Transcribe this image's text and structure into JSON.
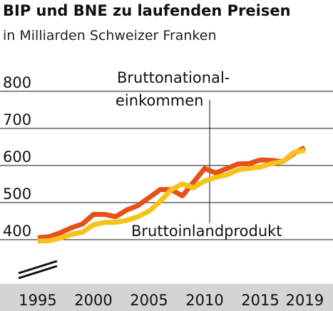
{
  "chart_data": {
    "type": "line",
    "title": "BIP und BNE zu laufenden Preisen",
    "subtitle": "in Milliarden Schweizer Franken",
    "x": [
      1995,
      1996,
      1997,
      1998,
      1999,
      2000,
      2001,
      2002,
      2003,
      2004,
      2005,
      2006,
      2007,
      2008,
      2009,
      2010,
      2011,
      2012,
      2013,
      2014,
      2015,
      2016,
      2017,
      2018,
      2019
    ],
    "series": [
      {
        "name": "Bruttoinlandprodukt",
        "color": "#e8501a",
        "values": [
          405,
          408,
          418,
          432,
          442,
          468,
          468,
          462,
          480,
          492,
          513,
          535,
          535,
          518,
          555,
          592,
          580,
          592,
          604,
          605,
          615,
          614,
          610,
          632,
          648
        ]
      },
      {
        "name": "Bruttonationaleinkommen",
        "color": "#f7c21a",
        "values": [
          396,
          397,
          404,
          414,
          420,
          440,
          447,
          447,
          452,
          462,
          477,
          503,
          535,
          550,
          540,
          558,
          568,
          575,
          588,
          592,
          596,
          605,
          610,
          635,
          641
        ]
      }
    ],
    "xticks": [
      "1995",
      "2000",
      "2005",
      "2010",
      "2015",
      "2019"
    ],
    "yticks": [
      "400",
      "500",
      "600",
      "700",
      "800"
    ],
    "ylim": [
      370,
      800
    ],
    "annotations": {
      "gni_line1": "Bruttonational-",
      "gni_line2": "einkommen",
      "gdp": "Bruttoinlandprodukt"
    },
    "axis_break": true,
    "grid": "horizontal"
  }
}
